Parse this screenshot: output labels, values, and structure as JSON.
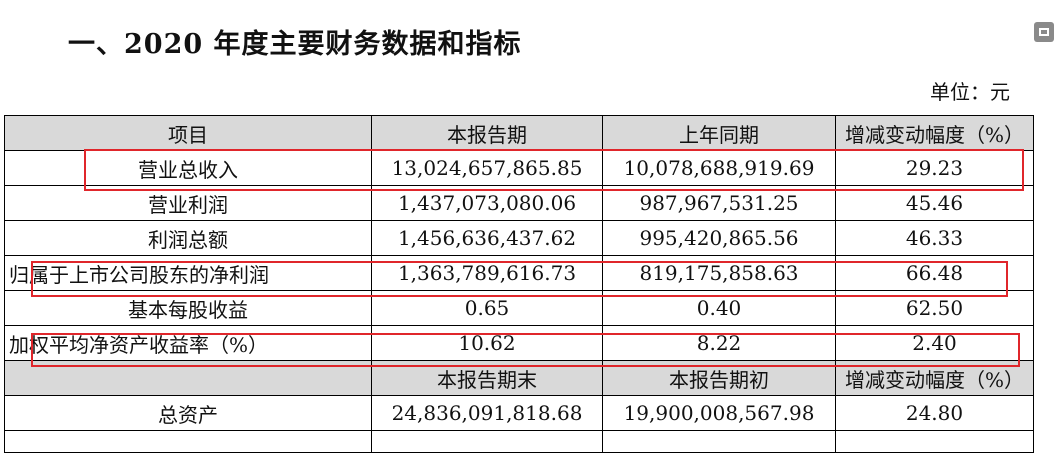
{
  "title": "一、2020 年度主要财务数据和指标",
  "unit_label": "单位：元",
  "corner_icon": "window-restore-icon",
  "highlight_color": "#e0262b",
  "header_bg": "#d9d9d9",
  "table": {
    "headers": [
      "项目",
      "本报告期",
      "上年同期",
      "增减变动幅度（%）"
    ],
    "rows": [
      {
        "item": "营业总收入",
        "current": "13,024,657,865.85",
        "prior": "10,078,688,919.69",
        "change": "29.23",
        "highlighted": true
      },
      {
        "item": "营业利润",
        "current": "1,437,073,080.06",
        "prior": "987,967,531.25",
        "change": "45.46",
        "highlighted": false
      },
      {
        "item": "利润总额",
        "current": "1,456,636,437.62",
        "prior": "995,420,865.56",
        "change": "46.33",
        "highlighted": false
      },
      {
        "item": "归属于上市公司股东的净利润",
        "current": "1,363,789,616.73",
        "prior": "819,175,858.63",
        "change": "66.48",
        "highlighted": true
      },
      {
        "item": "基本每股收益",
        "current": "0.65",
        "prior": "0.40",
        "change": "62.50",
        "highlighted": false
      },
      {
        "item": "加权平均净资产收益率（%）",
        "current": "10.62",
        "prior": "8.22",
        "change": "2.40",
        "highlighted": true
      }
    ],
    "headers2": [
      "",
      "本报告期末",
      "本报告期初",
      "增减变动幅度（%）"
    ],
    "rows2": [
      {
        "item": "总资产",
        "current": "24,836,091,818.68",
        "prior": "19,900,008,567.98",
        "change": "24.80"
      }
    ]
  }
}
